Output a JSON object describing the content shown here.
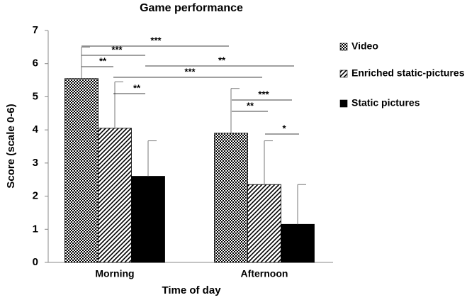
{
  "chart_data": {
    "type": "bar",
    "title": "Game performance",
    "x_label": "Time of day",
    "y_label": "Score (scale 0-6)",
    "categories": [
      "Morning",
      "Afternoon"
    ],
    "series": [
      {
        "name": "Video",
        "color": "#000000",
        "pattern": "checker",
        "values": [
          5.55,
          3.9
        ],
        "errors": [
          0.95,
          1.35
        ]
      },
      {
        "name": "Enriched static-pictures",
        "color": "#000000",
        "pattern": "diagonal",
        "values": [
          4.05,
          2.35
        ],
        "errors": [
          1.4,
          1.32
        ]
      },
      {
        "name": "Static pictures",
        "color": "#000000",
        "pattern": "solid",
        "values": [
          2.6,
          1.15
        ],
        "errors": [
          1.07,
          1.2
        ]
      }
    ],
    "ylim": [
      0,
      7
    ],
    "yticks": [
      0,
      1,
      2,
      3,
      4,
      5,
      6,
      7
    ],
    "grid": false,
    "legend": "right",
    "annotations": [
      "***",
      "***",
      "**",
      "**",
      "***",
      "**",
      "***",
      "**",
      "*"
    ]
  }
}
